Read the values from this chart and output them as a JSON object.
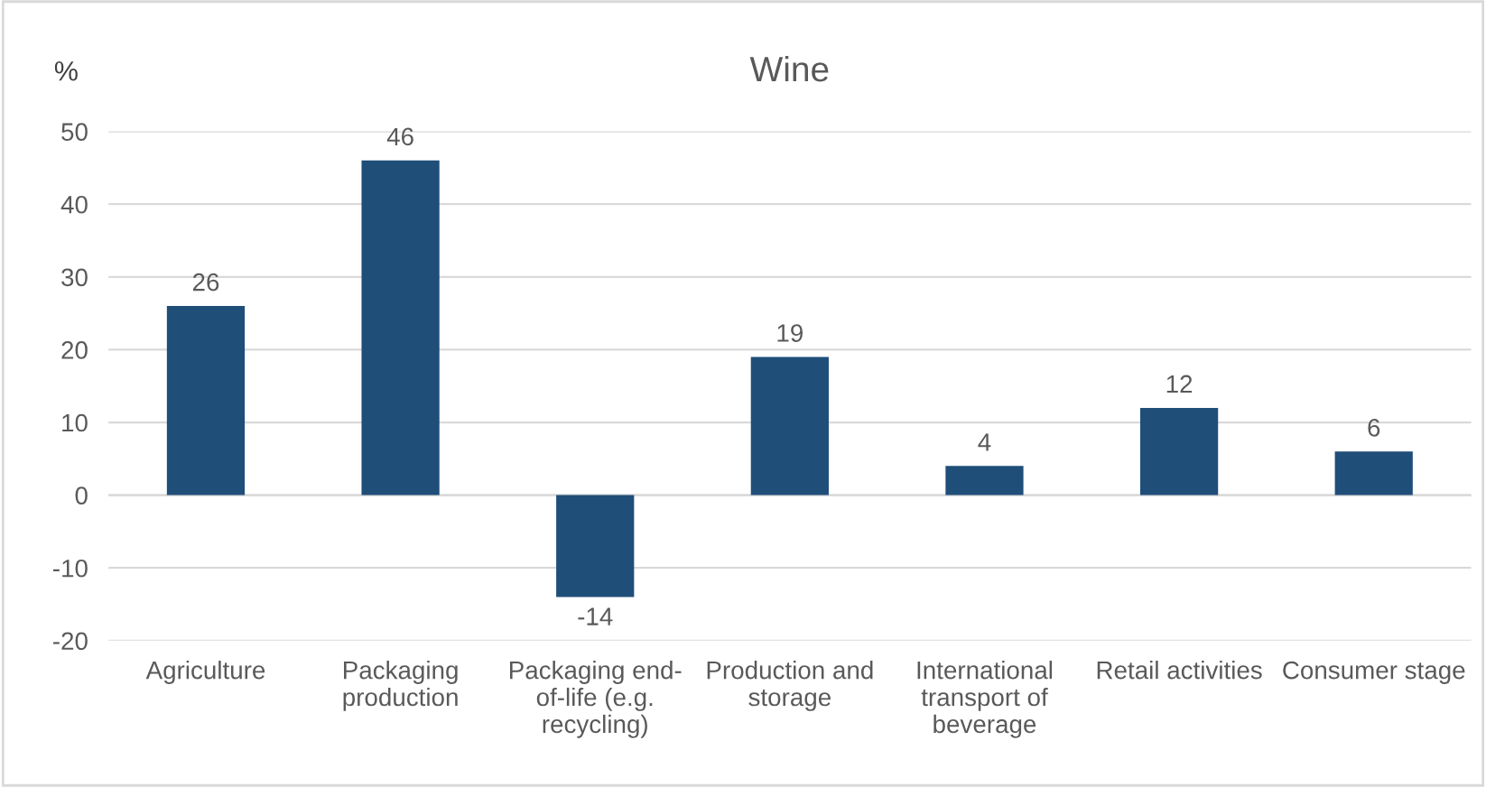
{
  "chart_data": {
    "type": "bar",
    "title": "Wine",
    "ylabel": "%",
    "categories": [
      "Agriculture",
      "Packaging\nproduction",
      "Packaging end-\nof-life (e.g.\nrecycling)",
      "Production and\nstorage",
      "International\ntransport of\nbeverage",
      "Retail activities",
      "Consumer stage"
    ],
    "values": [
      26,
      46,
      -14,
      19,
      4,
      12,
      6
    ],
    "color": "#1f4e79",
    "ylim": [
      -20,
      50
    ],
    "yticks": [
      -20,
      -10,
      0,
      10,
      20,
      30,
      40,
      50
    ],
    "grid": "y",
    "data_labels": true,
    "legend": false
  }
}
